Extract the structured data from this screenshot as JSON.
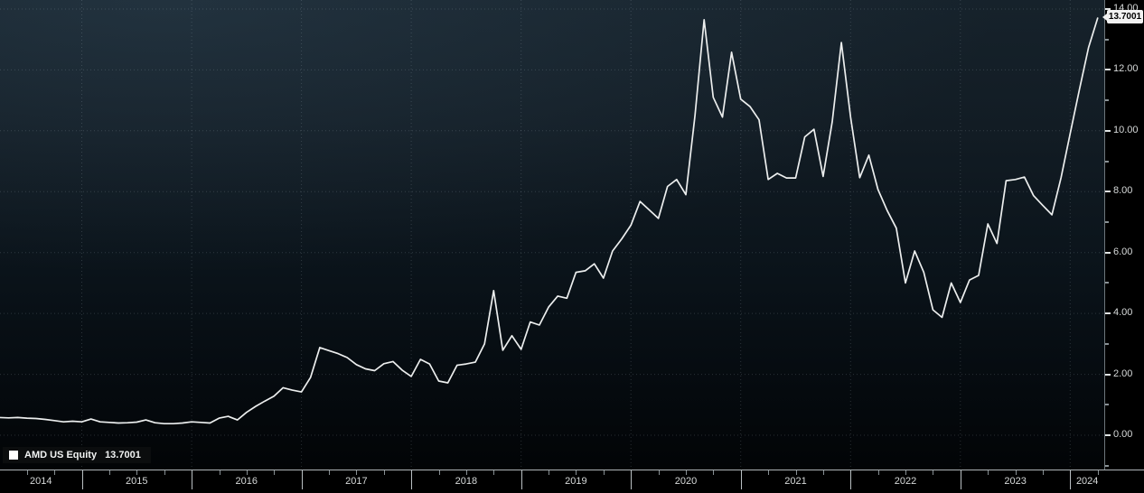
{
  "legend": {
    "label": "AMD US Equity",
    "value": "13.7001"
  },
  "badge": {
    "value": "13.7001"
  },
  "chart_data": {
    "type": "line",
    "title": "AMD US Equity",
    "x_axis": {
      "year_labels": [
        "2014",
        "2015",
        "2016",
        "2017",
        "2018",
        "2019",
        "2020",
        "2021",
        "2022",
        "2023",
        "2024"
      ],
      "grid_years": [
        2015,
        2016,
        2017,
        2018,
        2019,
        2020,
        2021,
        2022,
        2023,
        2024
      ],
      "range_years": [
        2014.255,
        2024.31
      ],
      "minor_tick_interval_years": 0.25,
      "grid": "dotted vertical lines at year boundaries"
    },
    "y_axis": {
      "side": "right",
      "tick_values": [
        0,
        2,
        4,
        6,
        8,
        10,
        12,
        14
      ],
      "tick_labels": [
        "0.00",
        "2.00",
        "4.00",
        "6.00",
        "8.00",
        "10.00",
        "12.00",
        "14.00"
      ],
      "minor_tick_values": [
        -1,
        1,
        3,
        5,
        7,
        9,
        11,
        13
      ],
      "range": [
        -1.127,
        14.296
      ],
      "grid": "dotted horizontal lines at labeled ticks"
    },
    "legend": {
      "position": "bottom-left",
      "entries": [
        "AMD US Equity  13.7001"
      ]
    },
    "colors": {
      "line": "#eceeee",
      "grid": "rgba(190,205,215,0.20)",
      "axis_text": "#d6d9d9",
      "badge_bg": "#f2f2f2",
      "badge_text": "#000000",
      "background_top": "#16222b",
      "background_bottom": "#020406",
      "axis_strip_bg": "#000000"
    },
    "series": [
      {
        "name": "AMD US Equity",
        "color": "#eceeee",
        "last_value": 13.7001,
        "points": [
          [
            "2014-03",
            0.58
          ],
          [
            "2014-04",
            0.57
          ],
          [
            "2014-05",
            0.58
          ],
          [
            "2014-06",
            0.56
          ],
          [
            "2014-07",
            0.55
          ],
          [
            "2014-08",
            0.52
          ],
          [
            "2014-09",
            0.48
          ],
          [
            "2014-10",
            0.44
          ],
          [
            "2014-11",
            0.46
          ],
          [
            "2014-12",
            0.44
          ],
          [
            "2015-01",
            0.53
          ],
          [
            "2015-02",
            0.44
          ],
          [
            "2015-03",
            0.42
          ],
          [
            "2015-04",
            0.4
          ],
          [
            "2015-05",
            0.41
          ],
          [
            "2015-06",
            0.43
          ],
          [
            "2015-07",
            0.5
          ],
          [
            "2015-08",
            0.41
          ],
          [
            "2015-09",
            0.38
          ],
          [
            "2015-10",
            0.38
          ],
          [
            "2015-11",
            0.4
          ],
          [
            "2015-12",
            0.44
          ],
          [
            "2016-01",
            0.42
          ],
          [
            "2016-02",
            0.4
          ],
          [
            "2016-03",
            0.56
          ],
          [
            "2016-04",
            0.62
          ],
          [
            "2016-05",
            0.5
          ],
          [
            "2016-06",
            0.75
          ],
          [
            "2016-07",
            0.95
          ],
          [
            "2016-08",
            1.12
          ],
          [
            "2016-09",
            1.28
          ],
          [
            "2016-10",
            1.56
          ],
          [
            "2016-11",
            1.48
          ],
          [
            "2016-12",
            1.42
          ],
          [
            "2017-01",
            1.9
          ],
          [
            "2017-02",
            2.88
          ],
          [
            "2017-03",
            2.78
          ],
          [
            "2017-04",
            2.68
          ],
          [
            "2017-05",
            2.55
          ],
          [
            "2017-06",
            2.32
          ],
          [
            "2017-07",
            2.18
          ],
          [
            "2017-08",
            2.12
          ],
          [
            "2017-09",
            2.35
          ],
          [
            "2017-10",
            2.42
          ],
          [
            "2017-11",
            2.14
          ],
          [
            "2017-12",
            1.93
          ],
          [
            "2018-01",
            2.49
          ],
          [
            "2018-02",
            2.34
          ],
          [
            "2018-03",
            1.78
          ],
          [
            "2018-04",
            1.72
          ],
          [
            "2018-05",
            2.3
          ],
          [
            "2018-06",
            2.34
          ],
          [
            "2018-07",
            2.4
          ],
          [
            "2018-08",
            3.0
          ],
          [
            "2018-09",
            4.75
          ],
          [
            "2018-10",
            2.79
          ],
          [
            "2018-11",
            3.27
          ],
          [
            "2018-12",
            2.82
          ],
          [
            "2019-01",
            3.72
          ],
          [
            "2019-02",
            3.62
          ],
          [
            "2019-03",
            4.21
          ],
          [
            "2019-04",
            4.57
          ],
          [
            "2019-05",
            4.5
          ],
          [
            "2019-06",
            5.35
          ],
          [
            "2019-07",
            5.4
          ],
          [
            "2019-08",
            5.63
          ],
          [
            "2019-09",
            5.16
          ],
          [
            "2019-10",
            6.05
          ],
          [
            "2019-11",
            6.45
          ],
          [
            "2019-12",
            6.9
          ],
          [
            "2020-01",
            7.68
          ],
          [
            "2020-02",
            7.4
          ],
          [
            "2020-03",
            7.12
          ],
          [
            "2020-04",
            8.17
          ],
          [
            "2020-05",
            8.4
          ],
          [
            "2020-06",
            7.9
          ],
          [
            "2020-07",
            10.5
          ],
          [
            "2020-08",
            13.65
          ],
          [
            "2020-09",
            11.1
          ],
          [
            "2020-10",
            10.45
          ],
          [
            "2020-11",
            12.58
          ],
          [
            "2020-12",
            11.04
          ],
          [
            "2021-01",
            10.8
          ],
          [
            "2021-02",
            10.36
          ],
          [
            "2021-03",
            8.4
          ],
          [
            "2021-04",
            8.6
          ],
          [
            "2021-05",
            8.45
          ],
          [
            "2021-06",
            8.45
          ],
          [
            "2021-07",
            9.8
          ],
          [
            "2021-08",
            10.05
          ],
          [
            "2021-09",
            8.5
          ],
          [
            "2021-10",
            10.3
          ],
          [
            "2021-11",
            12.9
          ],
          [
            "2021-12",
            10.45
          ],
          [
            "2022-01",
            8.46
          ],
          [
            "2022-02",
            9.2
          ],
          [
            "2022-03",
            8.07
          ],
          [
            "2022-04",
            7.38
          ],
          [
            "2022-05",
            6.8
          ],
          [
            "2022-06",
            5.0
          ],
          [
            "2022-07",
            6.05
          ],
          [
            "2022-08",
            5.35
          ],
          [
            "2022-09",
            4.12
          ],
          [
            "2022-10",
            3.87
          ],
          [
            "2022-11",
            5.0
          ],
          [
            "2022-12",
            4.36
          ],
          [
            "2023-01",
            5.1
          ],
          [
            "2023-02",
            5.25
          ],
          [
            "2023-03",
            6.94
          ],
          [
            "2023-04",
            6.3
          ],
          [
            "2023-05",
            8.36
          ],
          [
            "2023-06",
            8.4
          ],
          [
            "2023-07",
            8.48
          ],
          [
            "2023-08",
            7.87
          ],
          [
            "2023-09",
            7.55
          ],
          [
            "2023-10",
            7.24
          ],
          [
            "2023-11",
            8.46
          ],
          [
            "2023-12",
            9.91
          ],
          [
            "2024-01",
            11.35
          ],
          [
            "2024-02",
            12.73
          ],
          [
            "2024-03",
            13.7001
          ]
        ]
      }
    ]
  }
}
